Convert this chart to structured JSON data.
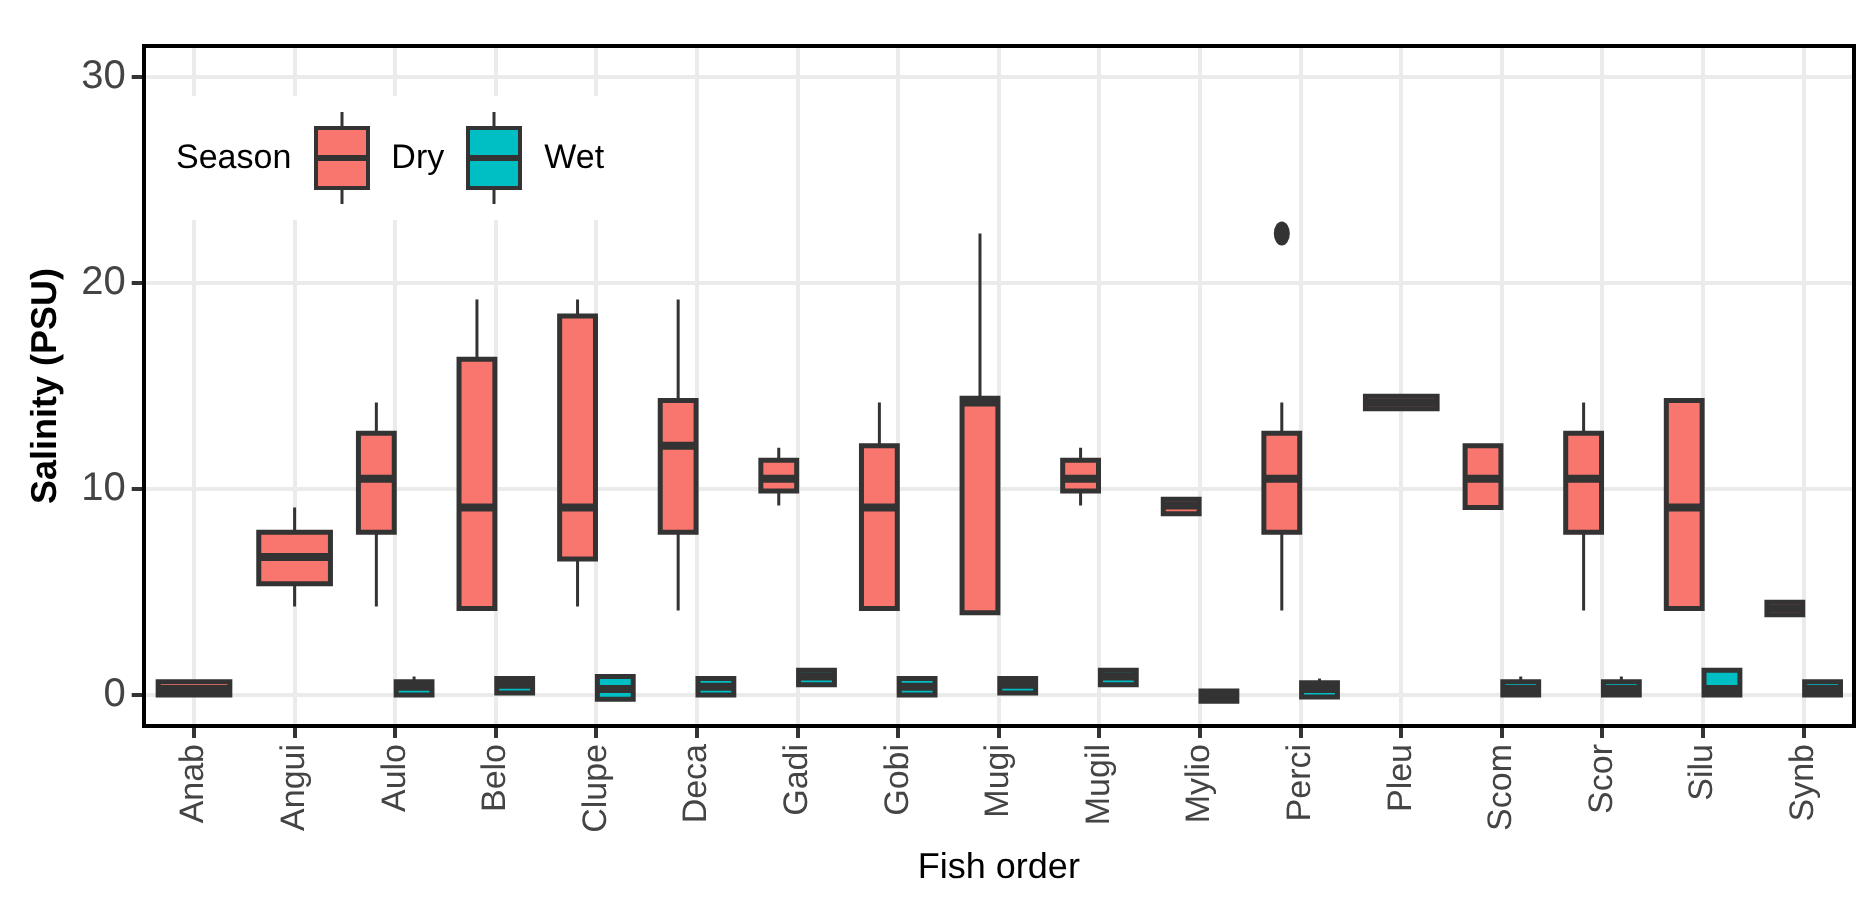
{
  "chart_data": {
    "type": "box",
    "xlabel": "Fish order",
    "ylabel": "Salinity (PSU)",
    "legend_title": "Season",
    "legend": "top left",
    "grid": true,
    "ylim": [
      -1.5,
      31.5
    ],
    "yticks": [
      0,
      10,
      20,
      30
    ],
    "categories": [
      "Anab",
      "Angui",
      "Aulo",
      "Belo",
      "Clupe",
      "Deca",
      "Gadi",
      "Gobi",
      "Mugi",
      "Mugil",
      "Mylio",
      "Perci",
      "Pleu",
      "Scom",
      "Scor",
      "Silu",
      "Synb"
    ],
    "series": [
      {
        "name": "Dry",
        "color": "#f8766d",
        "boxes": [
          {
            "low": 0.0,
            "q1": 0.0,
            "median": 0.3,
            "q3": 0.65,
            "high": 0.65
          },
          {
            "low": 4.3,
            "q1": 5.4,
            "median": 6.7,
            "q3": 7.9,
            "high": 9.1
          },
          {
            "low": 4.3,
            "q1": 7.9,
            "median": 10.5,
            "q3": 12.7,
            "high": 14.2
          },
          {
            "low": 4.2,
            "q1": 4.2,
            "median": 9.1,
            "q3": 16.3,
            "high": 19.2
          },
          {
            "low": 4.3,
            "q1": 6.6,
            "median": 9.1,
            "q3": 18.4,
            "high": 19.2
          },
          {
            "low": 4.1,
            "q1": 7.9,
            "median": 12.1,
            "q3": 14.3,
            "high": 19.2
          },
          {
            "low": 9.2,
            "q1": 9.9,
            "median": 10.5,
            "q3": 11.4,
            "high": 12.0
          },
          {
            "low": 4.2,
            "q1": 4.2,
            "median": 9.1,
            "q3": 12.1,
            "high": 14.2
          },
          {
            "low": 4.0,
            "q1": 4.0,
            "median": 14.2,
            "q3": 14.4,
            "high": 22.4
          },
          {
            "low": 9.2,
            "q1": 9.9,
            "median": 10.5,
            "q3": 11.4,
            "high": 12.0
          },
          {
            "low": 8.8,
            "q1": 8.8,
            "median": 9.2,
            "q3": 9.5,
            "high": 9.5
          },
          {
            "low": 4.1,
            "q1": 7.9,
            "median": 10.5,
            "q3": 12.7,
            "high": 14.2,
            "outliers": [
              22.4
            ]
          },
          {
            "low": 13.9,
            "q1": 13.9,
            "median": 14.2,
            "q3": 14.5,
            "high": 14.5
          },
          {
            "low": 9.1,
            "q1": 9.1,
            "median": 10.5,
            "q3": 12.1,
            "high": 12.1
          },
          {
            "low": 4.1,
            "q1": 7.9,
            "median": 10.5,
            "q3": 12.7,
            "high": 14.2
          },
          {
            "low": 4.2,
            "q1": 4.2,
            "median": 9.1,
            "q3": 14.3,
            "high": 14.3
          },
          {
            "low": 3.9,
            "q1": 3.9,
            "median": 4.2,
            "q3": 4.5,
            "high": 4.5
          }
        ]
      },
      {
        "name": "Wet",
        "color": "#00bfc4",
        "boxes": [
          null,
          null,
          {
            "low": 0.0,
            "q1": 0.0,
            "median": 0.4,
            "q3": 0.65,
            "high": 0.9
          },
          {
            "low": 0.1,
            "q1": 0.1,
            "median": 0.5,
            "q3": 0.8,
            "high": 0.8
          },
          {
            "low": -0.2,
            "q1": -0.2,
            "median": 0.3,
            "q3": 0.9,
            "high": 0.9
          },
          {
            "low": 0.0,
            "q1": 0.0,
            "median": 0.4,
            "q3": 0.8,
            "high": 0.8
          },
          {
            "low": 0.5,
            "q1": 0.5,
            "median": 0.9,
            "q3": 1.2,
            "high": 1.2
          },
          {
            "low": 0.0,
            "q1": 0.0,
            "median": 0.4,
            "q3": 0.8,
            "high": 0.8
          },
          {
            "low": 0.1,
            "q1": 0.1,
            "median": 0.5,
            "q3": 0.8,
            "high": 0.8
          },
          {
            "low": 0.5,
            "q1": 0.5,
            "median": 0.9,
            "q3": 1.2,
            "high": 1.2
          },
          {
            "low": -0.3,
            "q1": -0.3,
            "median": 0.0,
            "q3": 0.2,
            "high": 0.2
          },
          {
            "low": -0.1,
            "q1": -0.1,
            "median": 0.3,
            "q3": 0.6,
            "high": 0.8
          },
          null,
          {
            "low": 0.0,
            "q1": 0.0,
            "median": 0.3,
            "q3": 0.65,
            "high": 0.9
          },
          {
            "low": 0.0,
            "q1": 0.0,
            "median": 0.3,
            "q3": 0.65,
            "high": 0.9
          },
          {
            "low": 0.0,
            "q1": 0.0,
            "median": 0.3,
            "q3": 1.2,
            "high": 1.2
          },
          {
            "low": 0.0,
            "q1": 0.0,
            "median": 0.3,
            "q3": 0.65,
            "high": 0.65
          }
        ]
      }
    ]
  }
}
